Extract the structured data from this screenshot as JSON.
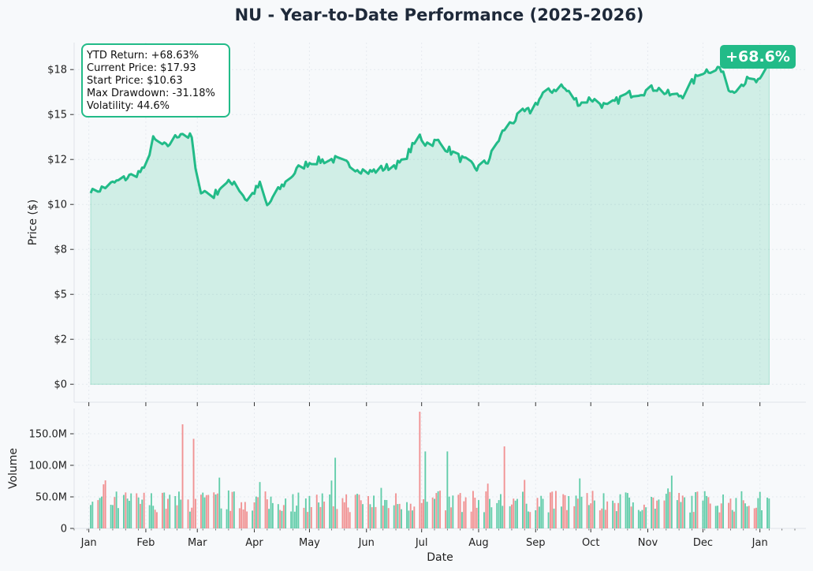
{
  "title": "NU - Year-to-Date Performance (2025-2026)",
  "colors": {
    "line": "#22bb88",
    "fill": "#22bb88",
    "up": "#22bb88",
    "down": "#ee6666",
    "text": "#1f2a3a",
    "background": "#f7f9fb"
  },
  "stats_box": {
    "lines": [
      "YTD Return: +68.63%",
      "Current Price: $17.93",
      "Start Price: $10.63",
      "Max Drawdown: -31.18%",
      "Volatility: 44.6%"
    ]
  },
  "badge": "+68.6%",
  "chart_data": [
    {
      "type": "area",
      "title": "NU - Year-to-Date Performance (2025-2026)",
      "ylabel": "Price ($)",
      "ylim": [
        -1,
        19
      ],
      "yticks": [
        0,
        2.5,
        5,
        7.5,
        10,
        12.5,
        15,
        17.5
      ],
      "yticklabels": [
        "$0",
        "$2",
        "$5",
        "$8",
        "$10",
        "$12",
        "$15",
        "$18"
      ],
      "grid": true,
      "x": [
        "2025-01-02",
        "2025-01-15",
        "2025-01-31",
        "2025-02-05",
        "2025-02-12",
        "2025-02-20",
        "2025-02-26",
        "2025-03-01",
        "2025-03-10",
        "2025-03-14",
        "2025-03-21",
        "2025-03-28",
        "2025-04-04",
        "2025-04-08",
        "2025-04-15",
        "2025-04-25",
        "2025-05-02",
        "2025-05-15",
        "2025-05-30",
        "2025-06-03",
        "2025-06-10",
        "2025-06-20",
        "2025-06-30",
        "2025-07-03",
        "2025-07-10",
        "2025-07-20",
        "2025-07-31",
        "2025-08-06",
        "2025-08-15",
        "2025-08-25",
        "2025-08-29",
        "2025-09-05",
        "2025-09-15",
        "2025-09-25",
        "2025-10-01",
        "2025-10-10",
        "2025-10-20",
        "2025-10-31",
        "2025-11-05",
        "2025-11-15",
        "2025-11-20",
        "2025-11-30",
        "2025-12-10",
        "2025-12-16",
        "2025-12-25",
        "2026-01-01",
        "2026-01-06"
      ],
      "y": [
        10.63,
        11.2,
        11.9,
        13.6,
        13.2,
        14.0,
        13.7,
        10.9,
        10.5,
        11.0,
        11.3,
        10.2,
        11.1,
        9.9,
        10.9,
        12.0,
        12.4,
        12.5,
        11.9,
        11.8,
        12.0,
        12.3,
        13.8,
        13.4,
        13.5,
        12.7,
        12.0,
        12.4,
        14.2,
        15.1,
        15.2,
        16.1,
        16.6,
        15.6,
        15.9,
        15.4,
        16.1,
        16.3,
        16.5,
        16.0,
        16.1,
        17.4,
        17.6,
        16.3,
        16.9,
        16.8,
        17.93
      ],
      "sample_dates": [
        "2025-01-02",
        "2026-01-06"
      ]
    },
    {
      "type": "bar",
      "xlabel": "Date",
      "ylabel": "Volume",
      "ylim": [
        0,
        190000000
      ],
      "yticks": [
        0,
        50000000,
        100000000,
        150000000
      ],
      "yticklabels": [
        "0",
        "50.0M",
        "100.0M",
        "150.0M"
      ],
      "xtick_labels": [
        "Jan",
        "Feb",
        "Mar",
        "Apr",
        "May",
        "Jun",
        "Jul",
        "Aug",
        "Sep",
        "Oct",
        "Nov",
        "Dec",
        "Jan"
      ],
      "xtick_dates": [
        "2025-01-01",
        "2025-02-01",
        "2025-03-01",
        "2025-04-01",
        "2025-05-01",
        "2025-06-01",
        "2025-07-01",
        "2025-08-01",
        "2025-09-01",
        "2025-10-01",
        "2025-11-01",
        "2025-12-01",
        "2026-01-01"
      ],
      "volume_range": [
        15000000,
        185000000
      ],
      "volume_note": "daily volume bars, green on up days, red on down days",
      "peaks": [
        {
          "date": "2025-02-21",
          "value": 165000000,
          "direction": "down"
        },
        {
          "date": "2025-02-27",
          "value": 142000000,
          "direction": "down"
        },
        {
          "date": "2025-06-30",
          "value": 185000000,
          "direction": "down"
        },
        {
          "date": "2025-07-03",
          "value": 122000000,
          "direction": "up"
        },
        {
          "date": "2025-07-15",
          "value": 122000000,
          "direction": "up"
        },
        {
          "date": "2025-08-15",
          "value": 130000000,
          "direction": "down"
        },
        {
          "date": "2025-05-15",
          "value": 112000000,
          "direction": "up"
        }
      ]
    }
  ]
}
